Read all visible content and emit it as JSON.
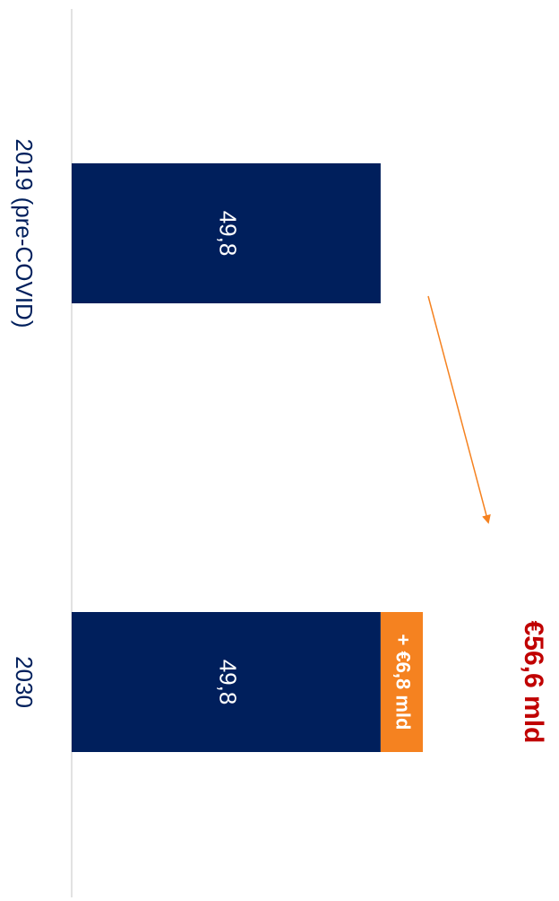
{
  "chart_data": {
    "type": "bar",
    "orientation": "horizontal",
    "stacked": true,
    "categories": [
      "2019 (pre-COVID)",
      "2030"
    ],
    "series": [
      {
        "color": "#001f5c",
        "values": [
          49.8,
          49.8
        ],
        "value_labels": [
          "49,8",
          "49,8"
        ]
      },
      {
        "color": "#f58220",
        "values": [
          null,
          6.8
        ],
        "value_labels": [
          null,
          "+ €6,8 mld"
        ]
      }
    ],
    "totals": [
      null,
      56.6
    ],
    "total_labels": [
      null,
      "€56,6 mld"
    ],
    "total_color": "#c00000"
  }
}
